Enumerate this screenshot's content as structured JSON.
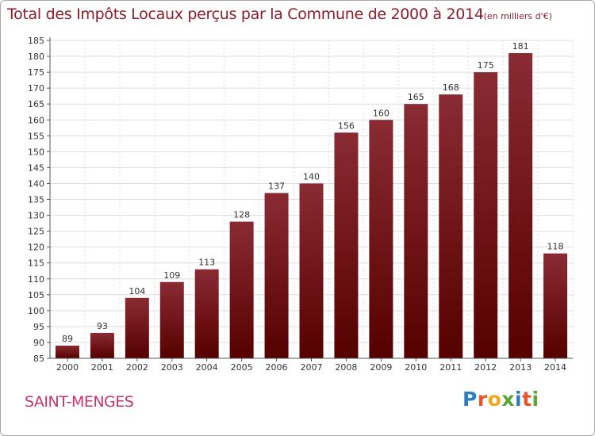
{
  "title": "Total des Impôts Locaux perçus par la Commune de 2000 à 2014",
  "title_unit": "(en milliers d'€)",
  "commune": "SAINT-MENGES",
  "brand": {
    "letters": [
      "P",
      "r",
      "o",
      "x",
      "i",
      "t",
      "i"
    ],
    "colors": [
      "#2a7fc1",
      "#e8552b",
      "#f2a81d",
      "#5aa632",
      "#2a7fc1",
      "#e8552b",
      "#5aa632"
    ]
  },
  "colors": {
    "bar": "#8b1a1a",
    "title": "#8b1e2c",
    "commune": "#c8326e",
    "grid": "#dddddd"
  },
  "chart_data": {
    "type": "bar",
    "title": "Total des Impôts Locaux perçus par la Commune de 2000 à 2014",
    "xlabel": "",
    "ylabel": "",
    "categories": [
      "2000",
      "2001",
      "2002",
      "2003",
      "2004",
      "2005",
      "2006",
      "2007",
      "2008",
      "2009",
      "2010",
      "2011",
      "2012",
      "2013",
      "2014"
    ],
    "values": [
      89,
      93,
      104,
      109,
      113,
      128,
      137,
      140,
      156,
      160,
      165,
      168,
      175,
      181,
      118
    ],
    "ylim": [
      85,
      185
    ],
    "yticks": [
      85,
      90,
      95,
      100,
      105,
      110,
      115,
      120,
      125,
      130,
      135,
      140,
      145,
      150,
      155,
      160,
      165,
      170,
      175,
      180,
      185
    ],
    "grid": true,
    "legend": "none"
  }
}
